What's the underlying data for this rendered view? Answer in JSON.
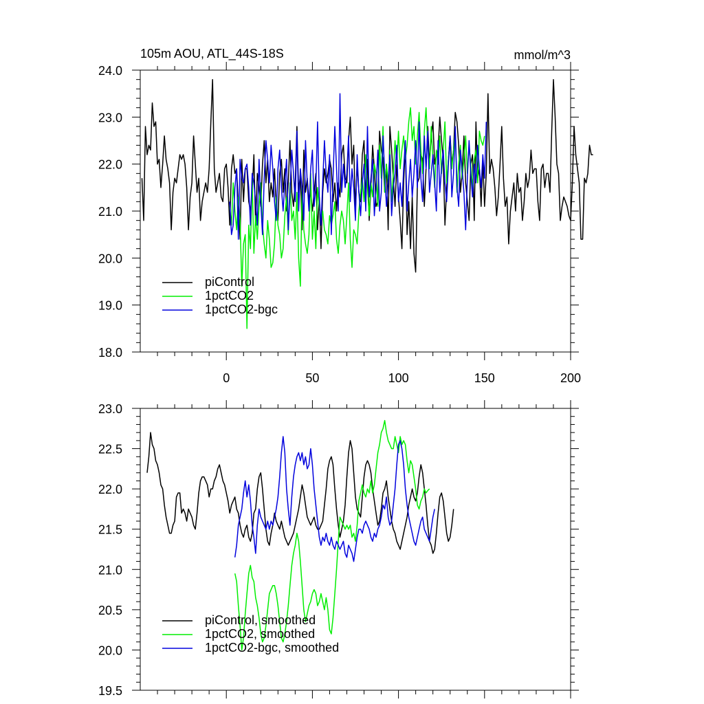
{
  "chart_data": [
    {
      "type": "line",
      "title": "105m AOU, ATL_44S-18S",
      "units": "mmol/m^3",
      "xlabel": "",
      "ylabel": "",
      "xlim": [
        -50,
        200
      ],
      "ylim": [
        18.0,
        24.0
      ],
      "yticks": [
        18.0,
        19.0,
        20.0,
        21.0,
        22.0,
        23.0,
        24.0
      ],
      "ytick_labels": [
        "18.0",
        "19.0",
        "20.0",
        "21.0",
        "22.0",
        "23.0",
        "24.0"
      ],
      "xticks": [
        0,
        50,
        100,
        150,
        200
      ],
      "xtick_labels": [
        "0",
        "50",
        "100",
        "150",
        "200"
      ],
      "legend": "bottom-left",
      "series": [
        {
          "name": "piControl",
          "color": "#000000",
          "x_start": -49,
          "values": [
            21.7,
            20.8,
            22.8,
            22.2,
            22.4,
            22.3,
            23.3,
            22.8,
            22.9,
            22.0,
            22.1,
            21.5,
            22.0,
            22.6,
            22.1,
            21.9,
            21.6,
            20.6,
            21.4,
            21.7,
            21.6,
            21.9,
            22.2,
            22.1,
            22.2,
            22.0,
            21.5,
            20.6,
            21.3,
            21.6,
            22.6,
            22.0,
            21.4,
            21.7,
            20.8,
            21.2,
            21.4,
            21.6,
            21.4,
            21.9,
            22.9,
            23.8,
            21.9,
            21.4,
            21.6,
            21.8,
            21.3,
            21.2,
            21.9,
            22.0,
            21.5,
            20.7,
            21.9,
            22.2,
            21.8,
            21.9,
            21.1,
            20.4,
            22.1,
            21.2,
            21.9,
            21.9,
            21.2,
            21.0,
            21.4,
            22.2,
            20.7,
            21.8,
            21.5,
            21.1,
            22.0,
            22.5,
            21.6,
            22.1,
            21.2,
            21.6,
            21.3,
            21.9,
            21.1,
            20.8,
            21.8,
            22.1,
            21.4,
            21.9,
            21.0,
            21.6,
            22.5,
            21.4,
            21.1,
            21.6,
            22.8,
            21.4,
            21.8,
            20.6,
            22.3,
            21.4,
            21.7,
            21.2,
            21.4,
            21.0,
            21.4,
            21.8,
            20.6,
            21.3,
            20.2,
            21.4,
            21.9,
            21.6,
            21.8,
            22.1,
            21.9,
            21.2,
            21.6,
            21.0,
            21.6,
            21.3,
            22.2,
            22.4,
            21.7,
            21.6,
            22.5,
            23.0,
            22.0,
            22.4,
            21.0,
            22.0,
            21.4,
            21.2,
            22.2,
            22.5,
            21.2,
            22.1,
            20.8,
            21.5,
            22.4,
            21.9,
            21.1,
            21.2,
            22.7,
            22.3,
            22.1,
            21.4,
            22.0,
            20.6,
            22.8,
            22.3,
            21.7,
            21.1,
            22.0,
            21.3,
            20.8,
            20.2,
            21.6,
            22.4,
            20.5,
            21.2,
            20.2,
            21.3,
            20.1,
            19.7,
            21.6,
            21.7,
            22.2,
            22.1,
            21.1,
            21.9,
            22.8,
            22.0,
            22.6,
            22.9,
            22.0,
            22.2,
            22.3,
            23.0,
            22.5,
            22.1,
            20.7,
            21.5,
            22.1,
            22.6,
            22.0,
            22.3,
            23.1,
            22.9,
            22.4,
            21.4,
            21.8,
            22.6,
            21.6,
            21.2,
            20.8,
            22.0,
            22.2,
            20.8,
            22.9,
            21.7,
            21.9,
            21.1,
            22.1,
            21.1,
            21.8,
            23.5,
            21.8,
            22.1,
            21.9,
            21.5,
            20.9,
            21.3,
            22.0,
            22.8,
            21.7,
            21.1,
            21.3,
            20.3,
            21.0,
            21.3,
            21.6,
            21.0,
            21.8,
            21.4,
            21.5,
            20.8,
            21.2,
            21.8,
            21.5,
            21.7,
            22.3,
            21.8,
            21.9,
            21.9,
            21.2,
            20.8,
            21.9,
            22.0,
            21.5,
            21.8,
            21.8,
            21.4,
            22.7,
            23.8,
            23.0,
            22.0,
            21.8,
            20.8,
            21.1,
            21.3,
            21.2,
            21.1,
            20.9,
            20.8,
            21.6,
            22.8,
            22.2,
            21.9,
            21.6,
            20.4,
            20.4,
            21.7,
            21.6,
            21.8,
            22.4,
            22.2,
            22.2
          ]
        },
        {
          "name": "1pctCO2",
          "color": "#00ee00",
          "x_start": 2,
          "values": [
            21.1,
            20.7,
            21.6,
            21.0,
            20.6,
            21.3,
            20.8,
            19.4,
            20.3,
            20.5,
            18.5,
            20.7,
            20.2,
            21.7,
            20.1,
            20.9,
            20.4,
            21.1,
            21.6,
            20.7,
            20.3,
            20.0,
            20.8,
            20.4,
            19.8,
            19.9,
            20.3,
            21.3,
            20.7,
            20.5,
            20.0,
            20.2,
            20.9,
            21.3,
            20.5,
            21.6,
            20.8,
            21.0,
            20.4,
            21.4,
            20.0,
            19.4,
            21.5,
            20.6,
            20.3,
            20.1,
            20.5,
            21.8,
            20.4,
            21.0,
            20.2,
            21.5,
            21.1,
            20.8,
            21.0,
            20.6,
            20.5,
            20.3,
            20.9,
            20.7,
            20.9,
            21.2,
            20.4,
            20.1,
            20.7,
            21.0,
            20.8,
            20.3,
            20.9,
            21.6,
            20.4,
            19.8,
            20.6,
            20.5,
            20.3,
            21.0,
            21.4,
            21.7,
            21.2,
            22.2,
            21.5,
            20.9,
            21.6,
            21.3,
            22.0,
            21.8,
            21.1,
            22.4,
            21.7,
            22.8,
            21.4,
            22.0,
            21.6,
            22.3,
            21.2,
            21.8,
            22.5,
            22.0,
            22.7,
            21.9,
            22.3,
            22.6,
            22.1,
            22.4,
            22.9,
            23.2,
            22.5,
            22.8,
            22.0,
            22.6,
            23.1,
            22.3,
            21.8,
            22.7,
            23.2,
            22.4,
            21.9,
            22.8,
            22.1,
            21.5,
            22.3,
            22.0,
            22.6,
            21.8,
            22.3,
            22.9,
            21.6,
            22.1,
            22.5,
            21.9,
            22.3,
            22.7,
            21.4,
            22.0,
            22.4,
            21.7,
            22.1,
            22.6,
            21.8,
            22.4,
            22.0,
            21.5,
            22.1,
            22.3,
            21.6,
            22.7,
            22.5,
            22.4,
            22.6
          ]
        },
        {
          "name": "1pctCO2-bgc",
          "color": "#0000dd",
          "x_start": 2,
          "values": [
            21.2,
            20.5,
            20.7,
            21.5,
            21.9,
            20.4,
            22.1,
            21.7,
            21.6,
            21.9,
            22.0,
            21.5,
            20.7,
            21.8,
            21.6,
            21.2,
            20.7,
            22.1,
            21.2,
            20.5,
            21.7,
            22.5,
            22.1,
            21.6,
            22.4,
            21.9,
            21.2,
            20.8,
            21.9,
            22.3,
            21.5,
            21.0,
            21.6,
            22.1,
            20.6,
            21.4,
            22.3,
            21.8,
            21.2,
            22.7,
            21.0,
            21.9,
            21.5,
            20.8,
            22.5,
            21.6,
            21.0,
            21.9,
            22.3,
            21.1,
            21.5,
            22.9,
            21.3,
            20.7,
            21.6,
            22.5,
            21.8,
            21.4,
            22.2,
            20.5,
            21.7,
            22.8,
            21.9,
            21.0,
            23.5,
            21.4,
            22.0,
            21.5,
            21.8,
            22.6,
            21.2,
            21.9,
            21.5,
            20.8,
            22.2,
            21.4,
            20.9,
            21.6,
            22.0,
            21.0,
            22.8,
            21.3,
            21.7,
            22.1,
            20.9,
            21.5,
            22.3,
            21.0,
            21.4,
            22.6,
            21.8,
            21.1,
            21.6,
            22.2,
            20.9,
            21.5,
            21.8,
            22.4,
            21.2,
            21.6,
            21.1,
            21.9,
            22.5,
            21.0,
            21.6,
            22.1,
            21.3,
            21.8,
            22.5,
            21.5,
            22.9,
            21.7,
            21.2,
            22.6,
            21.9,
            22.7,
            21.4,
            21.8,
            22.2,
            21.6,
            21.0,
            22.5,
            21.4,
            21.9,
            22.3,
            21.6,
            21.2,
            22.0,
            22.6,
            21.3,
            21.8,
            22.8,
            21.5,
            21.1,
            22.3,
            21.9,
            21.4,
            20.6,
            21.7,
            22.5,
            21.8,
            21.3,
            22.0,
            21.6,
            22.4,
            21.9,
            21.5,
            22.2,
            21.7,
            22.9
          ]
        }
      ]
    },
    {
      "type": "line",
      "title": "",
      "xlabel": "",
      "ylabel": "",
      "xlim": [
        -50,
        200
      ],
      "ylim": [
        19.5,
        23.0
      ],
      "yticks": [
        19.5,
        20.0,
        20.5,
        21.0,
        21.5,
        22.0,
        22.5,
        23.0
      ],
      "ytick_labels": [
        "19.5",
        "20.0",
        "20.5",
        "21.0",
        "21.5",
        "22.0",
        "22.5",
        "23.0"
      ],
      "xticks": [
        0,
        50,
        100,
        150,
        200
      ],
      "legend": "bottom-left",
      "series": [
        {
          "name": "piControl, smoothed",
          "color": "#000000",
          "x_start": -46,
          "values": [
            22.2,
            22.4,
            22.7,
            22.55,
            22.5,
            22.35,
            22.3,
            22.2,
            22.05,
            22.0,
            21.8,
            21.65,
            21.55,
            21.45,
            21.45,
            21.55,
            21.6,
            21.9,
            21.95,
            21.95,
            21.7,
            21.75,
            21.7,
            21.6,
            21.75,
            21.7,
            21.65,
            21.55,
            21.5,
            21.7,
            21.95,
            22.1,
            22.15,
            22.15,
            22.1,
            22.05,
            21.9,
            22.0,
            22.0,
            22.1,
            22.15,
            22.25,
            22.3,
            22.2,
            22.1,
            22.05,
            21.95,
            21.85,
            21.7,
            21.8,
            21.85,
            21.9,
            21.75,
            21.7,
            21.55,
            21.45,
            21.4,
            21.5,
            21.55,
            21.4,
            21.35,
            21.45,
            21.7,
            21.75,
            22.0,
            22.15,
            22.2,
            22.0,
            21.75,
            21.5,
            21.35,
            21.3,
            21.45,
            21.55,
            21.7,
            21.6,
            21.55,
            21.5,
            21.6,
            21.5,
            21.4,
            21.35,
            21.3,
            21.35,
            21.4,
            21.45,
            21.55,
            21.65,
            21.75,
            21.9,
            22.05,
            21.95,
            21.8,
            21.65,
            21.6,
            21.55,
            21.6,
            21.65,
            21.55,
            21.5,
            21.5,
            21.55,
            21.6,
            21.8,
            22.0,
            22.25,
            22.35,
            22.4,
            22.3,
            22.0,
            21.75,
            21.55,
            21.4,
            21.5,
            21.6,
            21.8,
            22.15,
            22.45,
            22.6,
            22.5,
            22.2,
            21.9,
            21.75,
            21.7,
            21.65,
            21.9,
            22.15,
            22.3,
            22.35,
            22.3,
            22.2,
            22.0,
            21.85,
            21.7,
            21.55,
            21.6,
            21.75,
            21.95,
            22.0,
            22.1,
            21.9,
            21.75,
            21.6,
            21.5,
            21.45,
            21.35,
            21.3,
            21.25,
            21.35,
            21.45,
            21.55,
            21.65,
            21.8,
            21.9,
            22.0,
            21.9,
            21.85,
            21.95,
            22.15,
            22.3,
            22.2,
            22.0,
            21.8,
            21.55,
            21.35,
            21.3,
            21.2,
            21.25,
            21.45,
            21.7,
            21.9,
            21.95,
            21.85,
            21.65,
            21.45,
            21.35,
            21.4,
            21.55,
            21.75
          ]
        },
        {
          "name": "1pctCO2, smoothed",
          "color": "#00ee00",
          "x_start": 5,
          "values": [
            20.95,
            20.85,
            20.55,
            20.3,
            20.0,
            20.15,
            20.45,
            20.7,
            20.95,
            21.05,
            20.9,
            20.85,
            20.65,
            20.55,
            20.4,
            20.2,
            20.1,
            20.15,
            20.3,
            20.5,
            20.7,
            20.75,
            20.8,
            20.8,
            20.7,
            20.55,
            20.35,
            20.15,
            20.1,
            20.2,
            20.35,
            20.55,
            20.8,
            21.05,
            21.2,
            21.3,
            21.45,
            21.35,
            21.1,
            20.8,
            20.5,
            20.35,
            20.45,
            20.55,
            20.6,
            20.7,
            20.75,
            20.7,
            20.55,
            20.6,
            20.7,
            20.6,
            20.5,
            20.65,
            20.5,
            20.25,
            20.2,
            20.4,
            20.7,
            21.0,
            21.35,
            21.65,
            21.6,
            21.55,
            21.5,
            21.55,
            21.5,
            21.55,
            21.4,
            21.45,
            21.35,
            21.55,
            21.85,
            21.95,
            22.05,
            21.95,
            21.9,
            22.0,
            21.95,
            22.1,
            21.95,
            22.05,
            22.25,
            22.45,
            22.55,
            22.7,
            22.75,
            22.85,
            22.7,
            22.6,
            22.55,
            22.5,
            22.5,
            22.65,
            22.55,
            22.45,
            22.65,
            22.55,
            22.6,
            22.55,
            22.35,
            22.2,
            22.35,
            22.3,
            22.15,
            22.0,
            21.8,
            21.75,
            21.85,
            21.9,
            22.0,
            21.95,
            21.98,
            22.0
          ]
        },
        {
          "name": "1pctCO2-bgc, smoothed",
          "color": "#0000dd",
          "x_start": 5,
          "values": [
            21.15,
            21.3,
            21.55,
            21.65,
            21.75,
            21.95,
            22.1,
            21.9,
            22.05,
            21.85,
            21.55,
            21.4,
            21.2,
            21.55,
            21.75,
            21.65,
            21.6,
            21.55,
            21.5,
            21.6,
            21.5,
            21.6,
            21.55,
            21.65,
            21.75,
            21.9,
            22.15,
            22.45,
            22.65,
            22.45,
            22.0,
            21.75,
            21.55,
            21.9,
            22.15,
            22.3,
            22.4,
            22.45,
            22.35,
            22.45,
            22.3,
            22.4,
            22.25,
            22.3,
            22.5,
            22.3,
            22.0,
            21.8,
            21.6,
            21.4,
            21.3,
            21.4,
            21.35,
            21.45,
            21.35,
            21.3,
            21.4,
            21.3,
            21.25,
            21.35,
            21.3,
            21.25,
            21.3,
            21.35,
            21.2,
            21.15,
            21.3,
            21.25,
            21.2,
            21.1,
            21.25,
            21.4,
            21.5,
            21.5,
            21.45,
            21.55,
            21.6,
            21.55,
            21.5,
            21.4,
            21.35,
            21.45,
            21.4,
            21.5,
            21.55,
            21.65,
            21.8,
            21.75,
            21.9,
            21.65,
            21.55,
            21.6,
            21.8,
            22.0,
            22.3,
            22.55,
            22.6,
            22.5,
            22.3,
            22.0,
            21.8,
            21.65,
            21.55,
            21.45,
            21.35,
            21.3,
            21.4,
            21.5,
            21.6,
            21.65,
            21.5,
            21.45,
            21.4,
            21.35,
            21.5,
            21.65,
            21.75
          ]
        }
      ]
    }
  ]
}
